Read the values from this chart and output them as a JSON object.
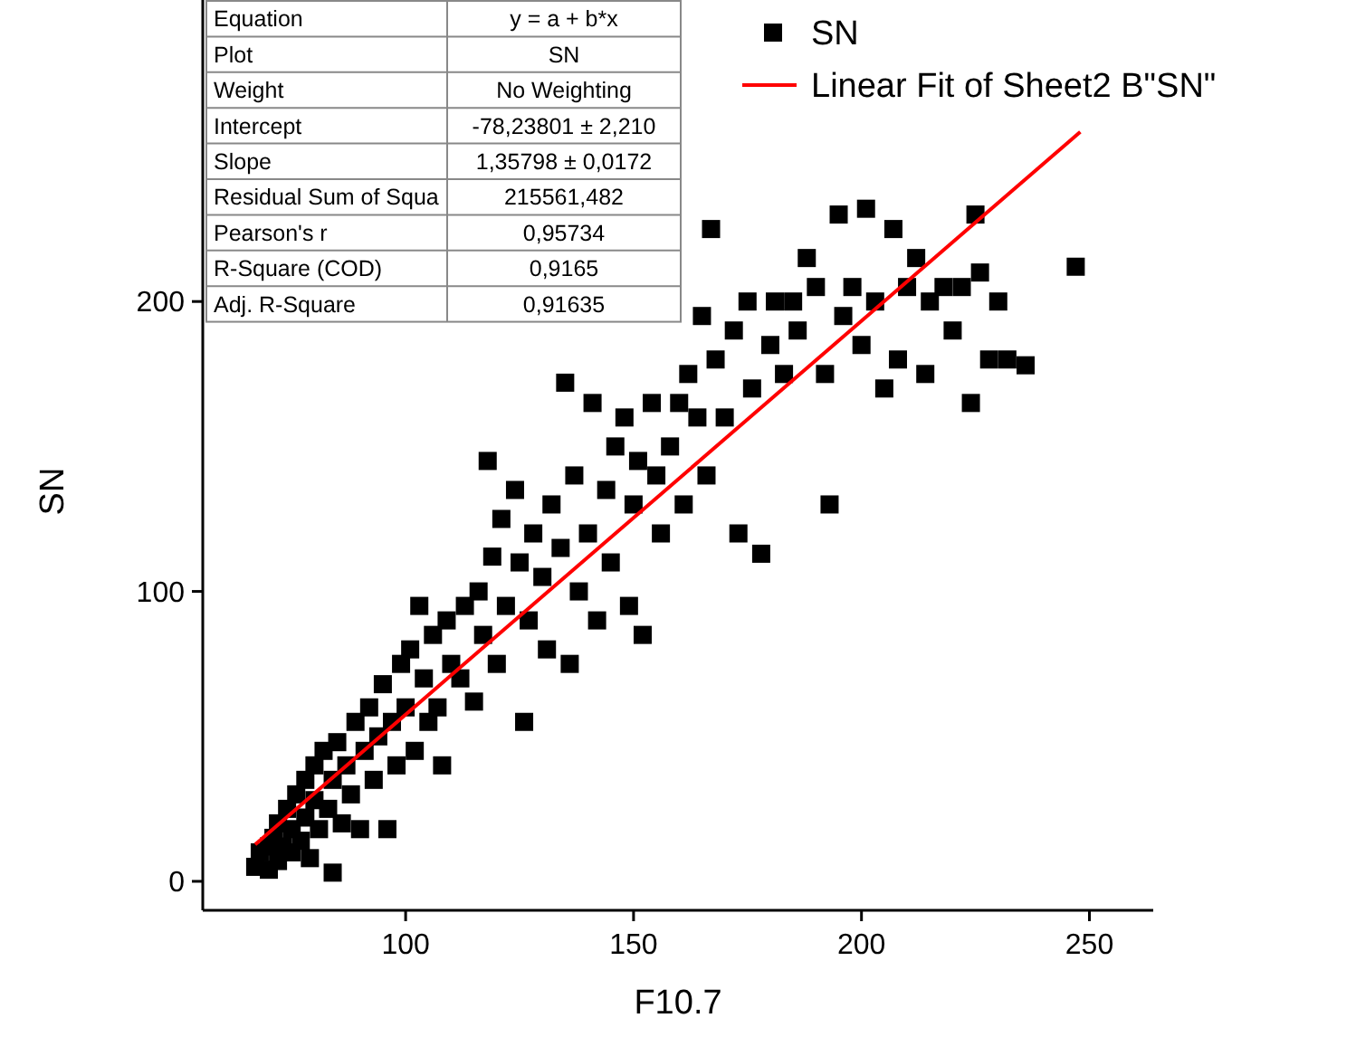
{
  "chart_data": {
    "type": "scatter",
    "xlabel": "F10.7",
    "ylabel": "SN",
    "xlim": [
      55.5,
      264
    ],
    "ylim": [
      -10,
      304
    ],
    "xticks": [
      100,
      150,
      200,
      250
    ],
    "yticks": [
      0,
      100,
      200
    ],
    "grid": false,
    "legend": "top right",
    "annotations": [
      "Equation",
      "y = a + b*x",
      "Plot",
      "SN",
      "Weight",
      "No Weighting",
      "Intercept",
      "-78,23801 ± 2,210",
      "Slope",
      "1,35798 ± 0,0172",
      "Residual Sum of Squa",
      "215561,482",
      "Pearson's r",
      "0,95734",
      "R-Square (COD)",
      "0,9165",
      "Adj. R-Square",
      "0,91635"
    ],
    "series": [
      {
        "name": "SN",
        "marker": "square",
        "color": "#000000",
        "x": [
          67,
          68,
          70,
          70,
          71,
          72,
          72,
          73,
          74,
          75,
          75,
          76,
          77,
          78,
          78,
          79,
          80,
          80,
          81,
          82,
          83,
          84,
          84,
          85,
          86,
          87,
          88,
          89,
          90,
          91,
          92,
          93,
          94,
          95,
          96,
          97,
          98,
          99,
          100,
          101,
          102,
          103,
          104,
          105,
          106,
          107,
          108,
          109,
          110,
          112,
          113,
          115,
          116,
          117,
          118,
          119,
          120,
          121,
          122,
          124,
          125,
          126,
          127,
          128,
          130,
          131,
          132,
          134,
          135,
          136,
          137,
          138,
          140,
          141,
          142,
          144,
          145,
          146,
          148,
          149,
          150,
          151,
          152,
          154,
          155,
          156,
          158,
          160,
          161,
          162,
          164,
          165,
          166,
          167,
          168,
          170,
          172,
          173,
          175,
          176,
          178,
          180,
          181,
          183,
          185,
          186,
          188,
          190,
          192,
          193,
          195,
          196,
          198,
          200,
          201,
          203,
          205,
          207,
          208,
          210,
          212,
          214,
          215,
          218,
          220,
          222,
          224,
          225,
          226,
          228,
          230,
          232,
          236,
          247
        ],
        "values": [
          5,
          10,
          12,
          4,
          15,
          7,
          20,
          12,
          25,
          10,
          18,
          30,
          14,
          22,
          35,
          8,
          28,
          40,
          18,
          45,
          25,
          3,
          35,
          48,
          20,
          40,
          30,
          55,
          18,
          45,
          60,
          35,
          50,
          68,
          18,
          55,
          40,
          75,
          60,
          80,
          45,
          95,
          70,
          55,
          85,
          60,
          40,
          90,
          75,
          70,
          95,
          62,
          100,
          85,
          145,
          112,
          75,
          125,
          95,
          135,
          110,
          55,
          90,
          120,
          105,
          80,
          130,
          115,
          172,
          75,
          140,
          100,
          120,
          165,
          90,
          135,
          110,
          150,
          160,
          95,
          130,
          145,
          85,
          165,
          140,
          120,
          150,
          165,
          130,
          175,
          160,
          195,
          140,
          225,
          180,
          160,
          190,
          120,
          200,
          170,
          113,
          185,
          200,
          175,
          200,
          190,
          215,
          205,
          175,
          130,
          230,
          195,
          205,
          185,
          232,
          200,
          170,
          225,
          180,
          205,
          215,
          175,
          200,
          205,
          190,
          205,
          165,
          230,
          210,
          180,
          200,
          180,
          178,
          212
        ]
      },
      {
        "name": "Linear Fit of Sheet2 B\"SN\"",
        "type": "line",
        "color": "#ff0000",
        "x": [
          67,
          248
        ],
        "values": [
          12.7,
          258.5
        ]
      }
    ]
  }
}
